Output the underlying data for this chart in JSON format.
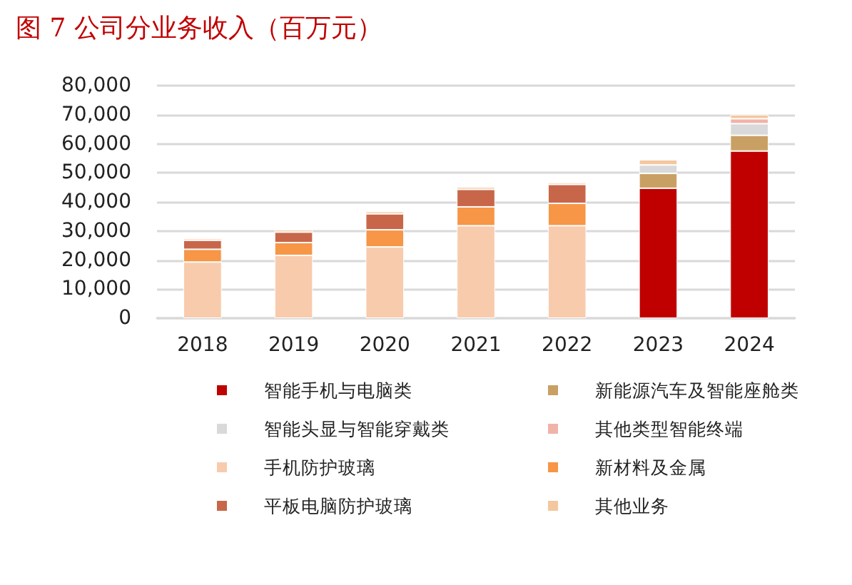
{
  "chart_data": {
    "type": "bar",
    "title": "图 7 公司分业务收入（百万元）",
    "stacked": true,
    "categories": [
      "2018",
      "2019",
      "2020",
      "2021",
      "2022",
      "2023",
      "2024"
    ],
    "series": [
      {
        "name": "智能手机与电脑类",
        "color": "#c00000",
        "values": [
          null,
          null,
          null,
          null,
          null,
          44700,
          57500
        ]
      },
      {
        "name": "新能源汽车及智能座舱类",
        "color": "#c9a063",
        "values": [
          null,
          null,
          null,
          null,
          null,
          5100,
          5400
        ]
      },
      {
        "name": "智能头显与智能穿戴类",
        "color": "#d9d9d9",
        "values": [
          null,
          null,
          null,
          null,
          null,
          2900,
          4000
        ]
      },
      {
        "name": "其他类型智能终端",
        "color": "#f0b3a8",
        "values": [
          null,
          null,
          null,
          null,
          null,
          null,
          1700
        ]
      },
      {
        "name": "手机防护玻璃",
        "color": "#f8cbad",
        "values": [
          19300,
          21600,
          24500,
          31800,
          31800,
          null,
          null
        ]
      },
      {
        "name": "新材料及金属",
        "color": "#f79646",
        "values": [
          4400,
          4400,
          5900,
          6500,
          7700,
          null,
          null
        ]
      },
      {
        "name": "平板电脑防护玻璃",
        "color": "#c8664a",
        "values": [
          3100,
          3600,
          5500,
          6000,
          6500,
          null,
          null
        ]
      },
      {
        "name": "其他业务",
        "color": "#f4c79e",
        "values": [
          600,
          800,
          800,
          800,
          700,
          1800,
          1400
        ]
      }
    ],
    "ylim": [
      0,
      80000
    ],
    "yticks": [
      0,
      {
        "value": 10000,
        "label": "10,000"
      },
      {
        "value": 20000,
        "label": "20,000"
      },
      {
        "value": 30000,
        "label": "30,000"
      },
      {
        "value": 40000,
        "label": "40,000"
      },
      {
        "value": 50000,
        "label": "50,000"
      },
      {
        "value": 60000,
        "label": "60,000"
      },
      {
        "value": 70000,
        "label": "70,000"
      },
      {
        "value": 80000,
        "label": "80,000"
      }
    ],
    "grid": "y",
    "legend": "bottom"
  }
}
